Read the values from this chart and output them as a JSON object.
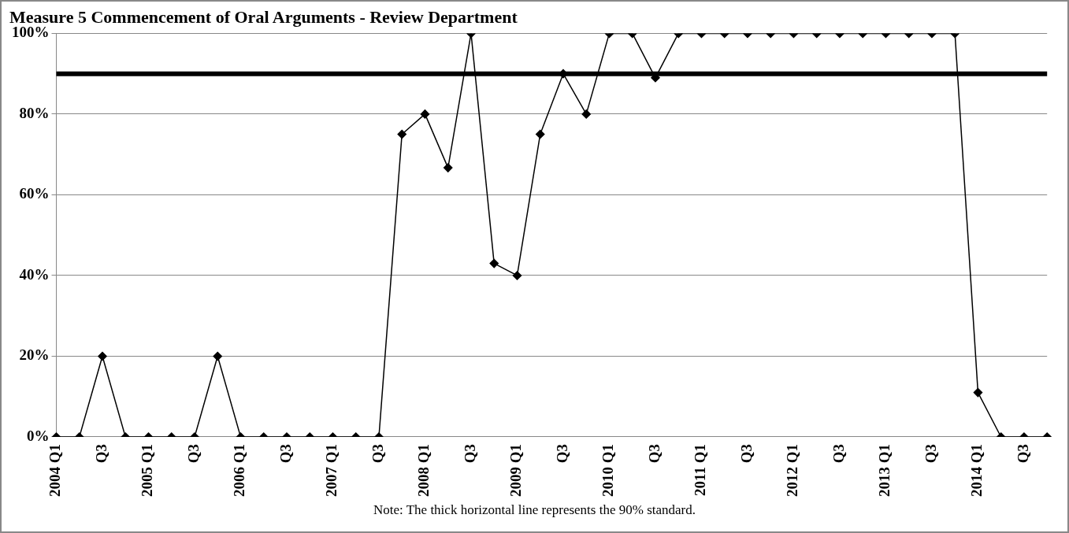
{
  "chart_data": {
    "type": "line",
    "title": "Measure 5 Commencement of Oral Arguments - Review Department",
    "categories": [
      "2004 Q1",
      null,
      "Q3",
      null,
      "2005 Q1",
      null,
      "Q3",
      null,
      "2006 Q1",
      null,
      "Q3",
      null,
      "2007 Q1",
      null,
      "Q3",
      null,
      "2008 Q1",
      null,
      "Q3",
      null,
      "2009 Q1",
      null,
      "Q3",
      null,
      "2010 Q1",
      null,
      "Q3",
      null,
      "2011 Q1",
      null,
      "Q3",
      null,
      "2012 Q1",
      null,
      "Q3",
      null,
      "2013 Q1",
      null,
      "Q3",
      null,
      "2014 Q1",
      null,
      "Q3",
      null
    ],
    "series": [
      {
        "color": "#000000",
        "values": [
          0,
          0,
          20,
          0,
          0,
          0,
          0,
          20,
          0,
          0,
          0,
          0,
          0,
          0,
          0,
          75,
          80,
          66.7,
          100,
          43,
          40,
          75,
          90,
          80,
          100,
          100,
          89,
          100,
          100,
          100,
          100,
          100,
          100,
          100,
          100,
          100,
          100,
          100,
          100,
          100,
          11,
          0,
          0,
          0
        ]
      }
    ],
    "ylim": [
      0,
      100
    ],
    "yticks": [
      {
        "value": 0,
        "label": "0%"
      },
      {
        "value": 20,
        "label": "20%"
      },
      {
        "value": 40,
        "label": "40%"
      },
      {
        "value": 60,
        "label": "60%"
      },
      {
        "value": 80,
        "label": "80%"
      },
      {
        "value": 100,
        "label": "100%"
      }
    ],
    "ref_lines": [
      {
        "axis": "y",
        "value": 90,
        "color": "#000000"
      }
    ],
    "grid": "y",
    "legend": false,
    "marker": "diamond",
    "line_style": "solid",
    "annotations": [
      "Note: The thick horizontal line represents the 90% standard."
    ]
  }
}
